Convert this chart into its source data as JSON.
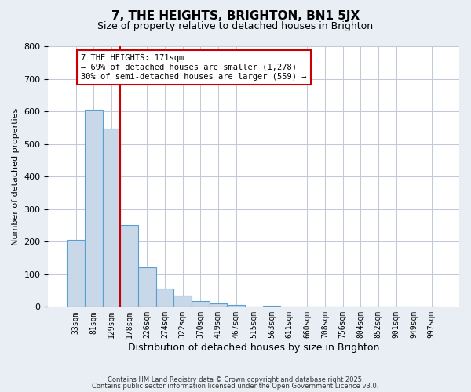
{
  "title": "7, THE HEIGHTS, BRIGHTON, BN1 5JX",
  "subtitle": "Size of property relative to detached houses in Brighton",
  "xlabel": "Distribution of detached houses by size in Brighton",
  "ylabel": "Number of detached properties",
  "bar_values": [
    205,
    605,
    548,
    252,
    122,
    55,
    35,
    18,
    10,
    5,
    0,
    3,
    0,
    0,
    0,
    0,
    0,
    0,
    0,
    0,
    0
  ],
  "bar_labels": [
    "33sqm",
    "81sqm",
    "129sqm",
    "178sqm",
    "226sqm",
    "274sqm",
    "322sqm",
    "370sqm",
    "419sqm",
    "467sqm",
    "515sqm",
    "563sqm",
    "611sqm",
    "660sqm",
    "708sqm",
    "756sqm",
    "804sqm",
    "852sqm",
    "901sqm",
    "949sqm",
    "997sqm"
  ],
  "bar_color": "#c8d8e8",
  "bar_edge_color": "#5a9fd4",
  "vline_x": 2.5,
  "vline_color": "#cc0000",
  "annotation_title": "7 THE HEIGHTS: 171sqm",
  "annotation_line1": "← 69% of detached houses are smaller (1,278)",
  "annotation_line2": "30% of semi-detached houses are larger (559) →",
  "annotation_box_color": "#cc0000",
  "ylim": [
    0,
    800
  ],
  "yticks": [
    0,
    100,
    200,
    300,
    400,
    500,
    600,
    700,
    800
  ],
  "footnote1": "Contains HM Land Registry data © Crown copyright and database right 2025.",
  "footnote2": "Contains public sector information licensed under the Open Government Licence v3.0.",
  "background_color": "#e8eef4",
  "plot_bg_color": "#ffffff"
}
